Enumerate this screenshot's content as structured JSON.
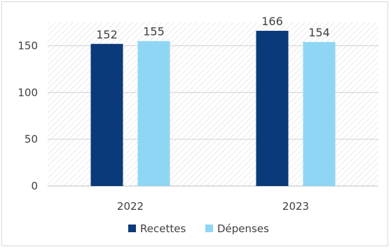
{
  "chart_data": {
    "type": "bar",
    "categories": [
      "2022",
      "2023"
    ],
    "series": [
      {
        "name": "Recettes",
        "values": [
          152,
          166
        ],
        "color": "#0b3a7a"
      },
      {
        "name": "Dépenses",
        "values": [
          155,
          154
        ],
        "color": "#8fd6f5"
      }
    ],
    "title": "",
    "xlabel": "",
    "ylabel": "",
    "ylim": [
      0,
      175
    ],
    "yticks": [
      0,
      50,
      100,
      150
    ],
    "grid": true,
    "data_labels": true,
    "legend_position": "bottom",
    "plot_background": "hatched"
  }
}
